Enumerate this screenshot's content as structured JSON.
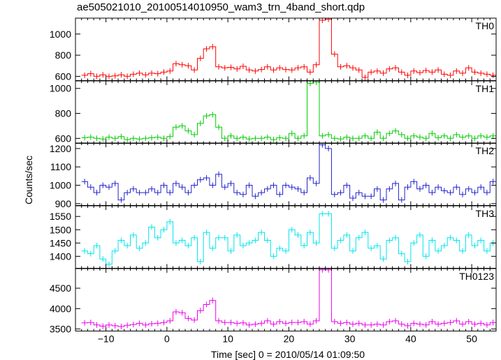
{
  "chart_data": {
    "type": "line",
    "title": "ae505021010_20100514010950_wam3_trn_4band_short.qdp",
    "xlabel": "Time [sec] 0 = 2010/05/14 01:09:50",
    "ylabel": "Counts/sec",
    "xlim": [
      -15,
      54
    ],
    "xticks": [
      -10,
      0,
      10,
      20,
      30,
      40,
      50
    ],
    "x_start": -13.5,
    "bin_width": 1,
    "grid": false,
    "panels": [
      {
        "name": "TH0",
        "color": "#ff0000",
        "ylim": [
          560,
          1150
        ],
        "yticks": [
          600,
          800,
          1000
        ],
        "values": [
          610,
          625,
          600,
          615,
          600,
          605,
          615,
          600,
          620,
          630,
          615,
          630,
          625,
          640,
          650,
          720,
          710,
          700,
          660,
          770,
          860,
          880,
          690,
          680,
          685,
          670,
          695,
          660,
          650,
          665,
          690,
          660,
          680,
          665,
          660,
          680,
          690,
          640,
          710,
          1130,
          1140,
          810,
          690,
          700,
          680,
          660,
          590,
          640,
          650,
          630,
          670,
          680,
          640,
          610,
          650,
          635,
          655,
          640,
          660,
          620,
          610,
          650,
          630,
          680,
          640,
          630,
          620,
          610
        ]
      },
      {
        "name": "TH1",
        "color": "#00cc00",
        "ylim": [
          560,
          1060
        ],
        "yticks": [
          600,
          800,
          1000
        ],
        "values": [
          605,
          610,
          600,
          595,
          610,
          600,
          615,
          590,
          600,
          595,
          600,
          605,
          610,
          600,
          615,
          690,
          700,
          660,
          630,
          720,
          780,
          790,
          690,
          600,
          620,
          600,
          610,
          595,
          600,
          600,
          610,
          590,
          605,
          600,
          640,
          600,
          620,
          1040,
          1050,
          620,
          630,
          600,
          595,
          610,
          600,
          600,
          620,
          600,
          650,
          600,
          640,
          660,
          630,
          600,
          620,
          610,
          600,
          640,
          605,
          620,
          600,
          630,
          610,
          620,
          600,
          620,
          610,
          620
        ]
      },
      {
        "name": "TH2",
        "color": "#2222cc",
        "ylim": [
          890,
          1230
        ],
        "yticks": [
          900,
          1000,
          1100,
          1200
        ],
        "values": [
          1020,
          990,
          960,
          1000,
          990,
          1010,
          920,
          960,
          980,
          960,
          960,
          980,
          960,
          1000,
          960,
          1010,
          990,
          960,
          1000,
          1030,
          1040,
          1000,
          1060,
          990,
          1010,
          960,
          950,
          1000,
          940,
          960,
          980,
          1000,
          950,
          1000,
          990,
          980,
          960,
          1040,
          1010,
          1220,
          1200,
          950,
          960,
          1000,
          930,
          960,
          940,
          940,
          980,
          920,
          980,
          1010,
          920,
          990,
          1020,
          980,
          1000,
          960,
          990,
          970,
          960,
          990,
          950,
          980,
          960,
          990,
          960,
          1020
        ]
      },
      {
        "name": "TH3",
        "color": "#00e5ee",
        "ylim": [
          1355,
          1590
        ],
        "yticks": [
          1400,
          1450,
          1500,
          1550
        ],
        "values": [
          1420,
          1410,
          1440,
          1390,
          1370,
          1420,
          1460,
          1440,
          1480,
          1430,
          1450,
          1510,
          1470,
          1500,
          1530,
          1450,
          1460,
          1440,
          1470,
          1380,
          1490,
          1430,
          1470,
          1470,
          1420,
          1480,
          1440,
          1450,
          1460,
          1490,
          1460,
          1400,
          1430,
          1420,
          1500,
          1480,
          1440,
          1490,
          1450,
          1560,
          1560,
          1430,
          1460,
          1480,
          1420,
          1470,
          1490,
          1430,
          1440,
          1390,
          1460,
          1470,
          1410,
          1380,
          1450,
          1480,
          1400,
          1460,
          1420,
          1440,
          1470,
          1460,
          1420,
          1480,
          1440,
          1460,
          1420,
          1450
        ]
      },
      {
        "name": "TH0123",
        "color": "#ee00ee",
        "ylim": [
          3450,
          4980
        ],
        "yticks": [
          3500,
          4000,
          4500
        ],
        "values": [
          3650,
          3660,
          3600,
          3570,
          3600,
          3580,
          3560,
          3590,
          3610,
          3640,
          3600,
          3630,
          3640,
          3660,
          3700,
          3920,
          3900,
          3760,
          3720,
          3950,
          4100,
          4200,
          3700,
          3660,
          3660,
          3640,
          3650,
          3600,
          3620,
          3640,
          3700,
          3620,
          3680,
          3640,
          3660,
          3660,
          3680,
          3620,
          3700,
          4950,
          4950,
          3680,
          3640,
          3660,
          3620,
          3640,
          3600,
          3600,
          3620,
          3600,
          3680,
          3700,
          3620,
          3580,
          3640,
          3620,
          3600,
          3680,
          3620,
          3640,
          3660,
          3700,
          3620,
          3680,
          3620,
          3640,
          3600,
          3660
        ]
      }
    ],
    "panel_label_position": "top-right"
  }
}
